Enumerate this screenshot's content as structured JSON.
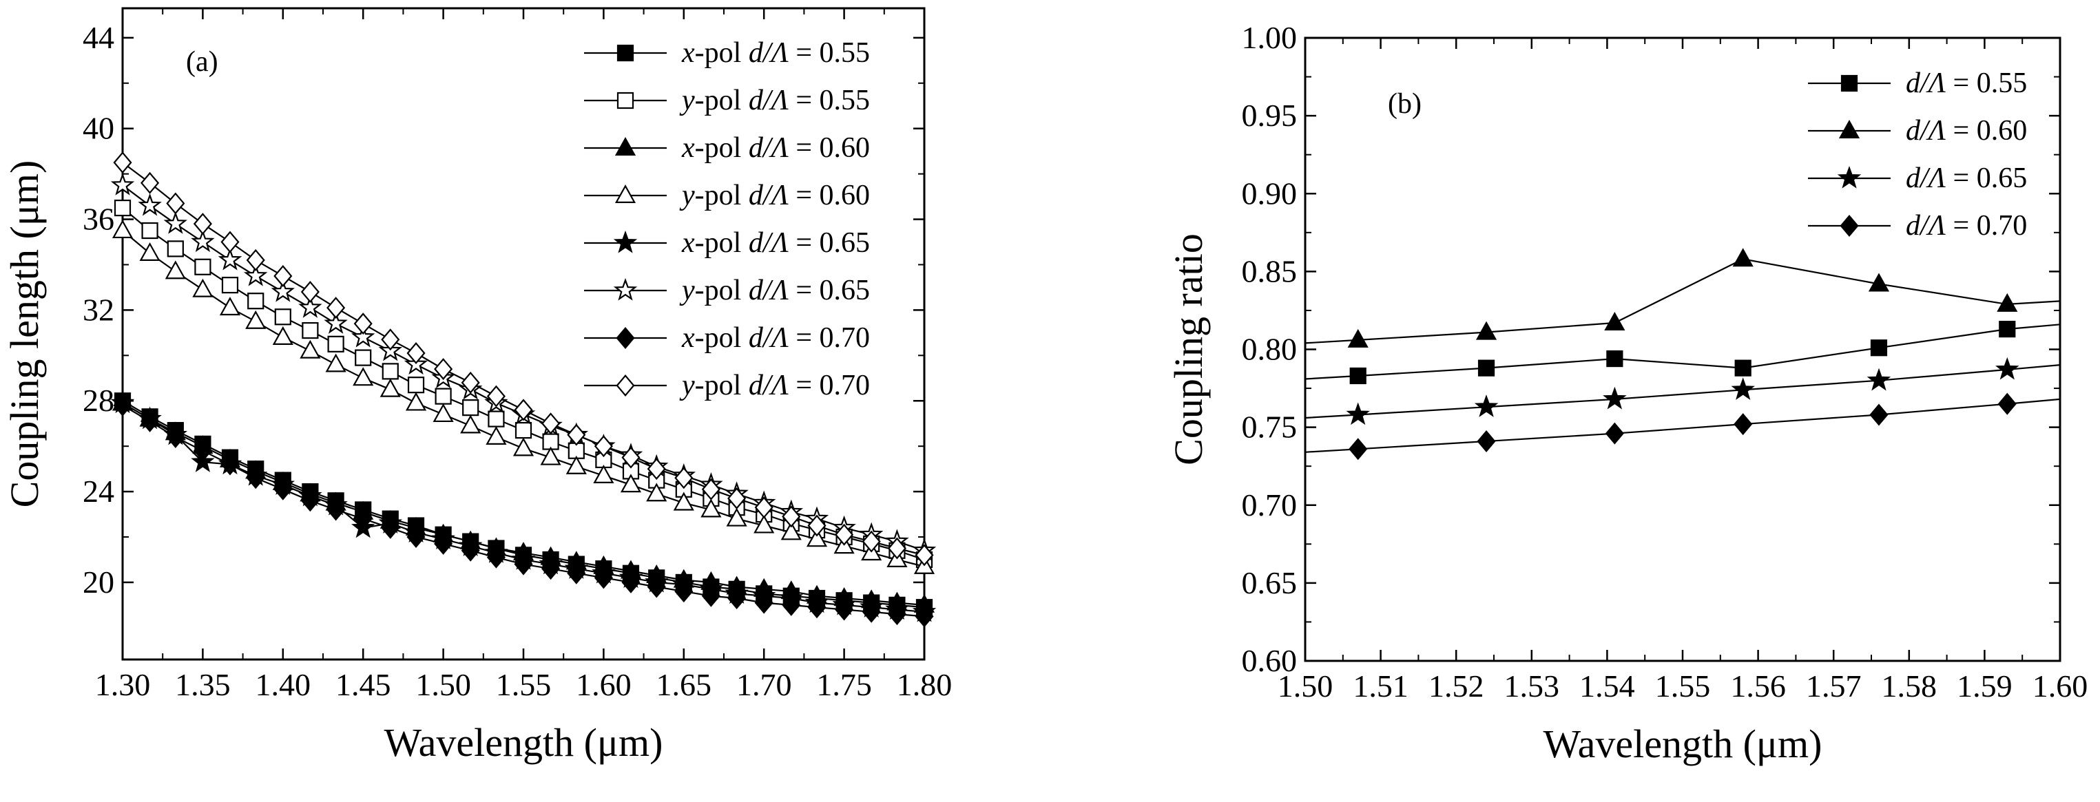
{
  "chart_data": [
    {
      "type": "line",
      "panel_label": "(a)",
      "title": "",
      "xlabel": "Wavelength (μm)",
      "ylabel": "Coupling length (μm)",
      "xlim": [
        1.3,
        1.8
      ],
      "ylim": [
        16.6,
        45.3
      ],
      "xticks": [
        "1.30",
        "1.35",
        "1.40",
        "1.45",
        "1.50",
        "1.55",
        "1.60",
        "1.65",
        "1.70",
        "1.75",
        "1.80"
      ],
      "yticks": [
        "20",
        "24",
        "28",
        "32",
        "36",
        "40",
        "44"
      ],
      "x": [
        1.3,
        1.317,
        1.333,
        1.35,
        1.367,
        1.383,
        1.4,
        1.417,
        1.433,
        1.45,
        1.467,
        1.483,
        1.5,
        1.517,
        1.533,
        1.55,
        1.567,
        1.583,
        1.6,
        1.617,
        1.633,
        1.65,
        1.667,
        1.683,
        1.7,
        1.717,
        1.733,
        1.75,
        1.767,
        1.783,
        1.8
      ],
      "legend_position": "top-right",
      "series": [
        {
          "name": "x-pol  d/Λ = 0.55",
          "pol": "x",
          "ratio": "0.55",
          "marker": "square",
          "filled": true,
          "values": [
            28.0,
            27.3,
            26.7,
            26.1,
            25.5,
            25.0,
            24.5,
            24.0,
            23.6,
            23.2,
            22.8,
            22.5,
            22.1,
            21.8,
            21.5,
            21.2,
            21.0,
            20.8,
            20.6,
            20.4,
            20.2,
            20.0,
            19.8,
            19.7,
            19.5,
            19.4,
            19.3,
            19.2,
            19.1,
            19.0,
            18.9
          ]
        },
        {
          "name": "y-pol  d/Λ = 0.55",
          "pol": "y",
          "ratio": "0.55",
          "marker": "square",
          "filled": false,
          "values": [
            36.5,
            35.5,
            34.7,
            33.9,
            33.1,
            32.4,
            31.7,
            31.1,
            30.5,
            29.9,
            29.3,
            28.7,
            28.2,
            27.7,
            27.2,
            26.7,
            26.2,
            25.8,
            25.4,
            24.9,
            24.5,
            24.1,
            23.7,
            23.3,
            23.0,
            22.6,
            22.3,
            22.0,
            21.7,
            21.4,
            21.0
          ]
        },
        {
          "name": "x-pol  d/Λ = 0.60",
          "pol": "x",
          "ratio": "0.60",
          "marker": "triangle",
          "filled": true,
          "values": [
            27.9,
            27.2,
            26.6,
            26.0,
            25.4,
            24.9,
            24.4,
            23.9,
            23.5,
            23.1,
            22.7,
            22.4,
            22.1,
            21.8,
            21.5,
            21.3,
            21.1,
            20.9,
            20.7,
            20.5,
            20.3,
            20.1,
            20.0,
            19.8,
            19.7,
            19.6,
            19.4,
            19.3,
            19.2,
            19.1,
            19.0
          ]
        },
        {
          "name": "y-pol  d/Λ = 0.60",
          "pol": "y",
          "ratio": "0.60",
          "marker": "triangle",
          "filled": false,
          "values": [
            35.5,
            34.5,
            33.7,
            32.9,
            32.1,
            31.5,
            30.8,
            30.2,
            29.6,
            29.0,
            28.5,
            27.9,
            27.4,
            26.9,
            26.4,
            25.9,
            25.5,
            25.1,
            24.7,
            24.3,
            23.9,
            23.5,
            23.2,
            22.8,
            22.5,
            22.2,
            21.9,
            21.6,
            21.3,
            21.0,
            20.7
          ]
        },
        {
          "name": "x-pol  d/Λ = 0.65",
          "pol": "x",
          "ratio": "0.65",
          "marker": "star",
          "filled": true,
          "values": [
            27.9,
            27.2,
            26.5,
            25.3,
            25.2,
            24.7,
            24.3,
            23.8,
            23.4,
            22.4,
            22.6,
            22.2,
            21.9,
            21.6,
            21.3,
            21.0,
            20.8,
            20.6,
            20.4,
            20.2,
            20.0,
            19.9,
            19.7,
            19.5,
            19.4,
            19.3,
            19.1,
            19.0,
            18.9,
            18.8,
            18.7
          ]
        },
        {
          "name": "y-pol  d/Λ = 0.65",
          "pol": "y",
          "ratio": "0.65",
          "marker": "star",
          "filled": false,
          "values": [
            37.5,
            36.6,
            35.8,
            35.0,
            34.2,
            33.5,
            32.8,
            32.1,
            31.4,
            30.8,
            30.2,
            29.6,
            29.0,
            28.5,
            27.9,
            27.4,
            26.9,
            26.5,
            26.0,
            25.6,
            25.1,
            24.7,
            24.3,
            23.9,
            23.5,
            23.1,
            22.8,
            22.4,
            22.1,
            21.8,
            21.4
          ]
        },
        {
          "name": "x-pol  d/Λ = 0.70",
          "pol": "x",
          "ratio": "0.70",
          "marker": "diamond",
          "filled": true,
          "values": [
            27.8,
            27.1,
            26.4,
            25.8,
            25.2,
            24.6,
            24.1,
            23.6,
            23.2,
            22.8,
            22.4,
            22.0,
            21.7,
            21.4,
            21.1,
            20.8,
            20.6,
            20.4,
            20.2,
            20.0,
            19.8,
            19.6,
            19.4,
            19.3,
            19.1,
            19.0,
            18.9,
            18.8,
            18.7,
            18.6,
            18.5
          ]
        },
        {
          "name": "y-pol  d/Λ = 0.70",
          "pol": "y",
          "ratio": "0.70",
          "marker": "diamond",
          "filled": false,
          "values": [
            38.5,
            37.6,
            36.7,
            35.8,
            35.0,
            34.2,
            33.5,
            32.8,
            32.1,
            31.4,
            30.7,
            30.1,
            29.4,
            28.8,
            28.2,
            27.6,
            27.0,
            26.5,
            26.0,
            25.5,
            25.0,
            24.6,
            24.1,
            23.7,
            23.3,
            22.9,
            22.5,
            22.1,
            21.8,
            21.5,
            21.2
          ]
        }
      ]
    },
    {
      "type": "line",
      "panel_label": "(b)",
      "title": "",
      "xlabel": "Wavelength (μm)",
      "ylabel": "Coupling ratio",
      "xlim": [
        1.5,
        1.6
      ],
      "ylim": [
        0.6,
        1.0
      ],
      "xticks": [
        "1.50",
        "1.51",
        "1.52",
        "1.53",
        "1.54",
        "1.55",
        "1.56",
        "1.57",
        "1.58",
        "1.59",
        "1.60"
      ],
      "yticks": [
        "0.60",
        "0.65",
        "0.70",
        "0.75",
        "0.80",
        "0.85",
        "0.90",
        "0.95",
        "1.00"
      ],
      "x": [
        1.5,
        1.507,
        1.524,
        1.541,
        1.558,
        1.576,
        1.593,
        1.6
      ],
      "legend_position": "top-right",
      "series": [
        {
          "name": "d/Λ = 0.55",
          "ratio": "0.55",
          "marker": "square",
          "values": [
            0.781,
            0.783,
            0.788,
            0.794,
            0.788,
            0.801,
            0.813,
            0.816
          ]
        },
        {
          "name": "d/Λ = 0.60",
          "ratio": "0.60",
          "marker": "triangle",
          "values": [
            0.804,
            0.806,
            0.811,
            0.817,
            0.858,
            0.842,
            0.829,
            0.831
          ]
        },
        {
          "name": "d/Λ = 0.65",
          "ratio": "0.65",
          "marker": "star",
          "values": [
            0.756,
            0.758,
            0.763,
            0.768,
            0.774,
            0.78,
            0.787,
            0.79
          ]
        },
        {
          "name": "d/Λ = 0.70",
          "ratio": "0.70",
          "marker": "diamond",
          "values": [
            0.734,
            0.736,
            0.741,
            0.746,
            0.752,
            0.758,
            0.765,
            0.768
          ]
        }
      ]
    }
  ]
}
